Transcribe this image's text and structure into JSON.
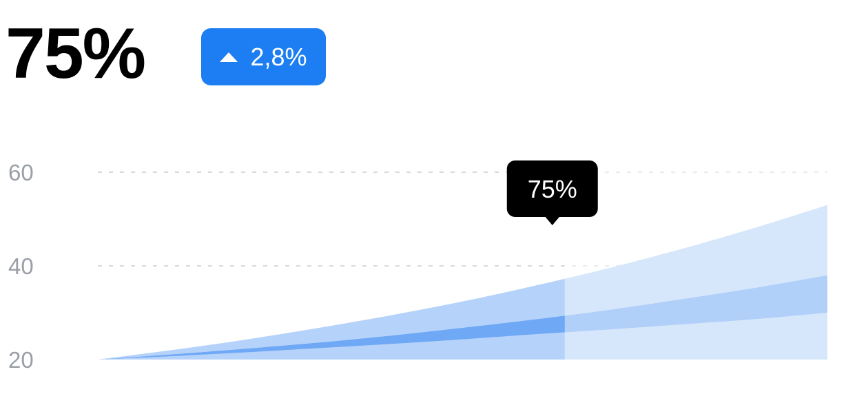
{
  "kpi": {
    "value": "75%",
    "change": "2,8%",
    "change_icon": "triangle-up-icon"
  },
  "colors": {
    "badge": "#1c7ef2",
    "band_outer": "#b5d3fa",
    "band_inner": "#6fa8f5",
    "future": "#ffffff",
    "future_opacity": 0.45,
    "grid": "#d9d9d9",
    "tick": "#9a9ea6",
    "tooltip_bg": "#000000",
    "tooltip_text": "#ffffff"
  },
  "chart_data": {
    "type": "area",
    "x": [
      0,
      1,
      2,
      3,
      4,
      5,
      6,
      7,
      8,
      9,
      10
    ],
    "series": [
      {
        "values": [
          20,
          20.7,
          21.5,
          22.4,
          23.3,
          24.3,
          25.4,
          26.4,
          27.5,
          28.6,
          30
        ]
      },
      {
        "values": [
          20,
          21.1,
          22.3,
          23.6,
          25.1,
          26.8,
          28.6,
          30.6,
          32.9,
          35.3,
          38
        ]
      },
      {
        "values": [
          20,
          22.0,
          24.2,
          26.7,
          29.4,
          32.4,
          35.8,
          39.5,
          43.6,
          48.1,
          53
        ]
      }
    ],
    "highlight_index": 6.4,
    "tooltip": "75%",
    "yticks": [
      "20",
      "40",
      "60"
    ],
    "ylim": [
      20,
      60
    ],
    "grid": true
  }
}
